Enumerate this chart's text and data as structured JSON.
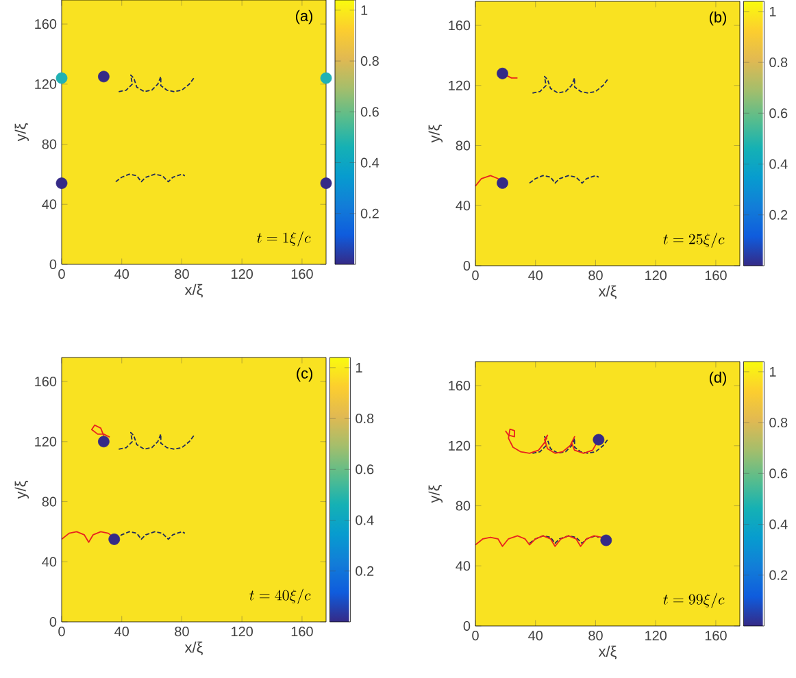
{
  "chart_data": [
    {
      "type": "line",
      "annotations": [
        "(a)",
        "t = 1\\xi/c"
      ],
      "xlabel": "x/ξ",
      "ylabel": "y/ξ",
      "xlim": [
        0,
        176
      ],
      "ylim": [
        0,
        176
      ],
      "xticks": [
        0,
        40,
        80,
        120,
        160
      ],
      "yticks": [
        0,
        40,
        80,
        120,
        160
      ],
      "clim": [
        0,
        1.04
      ],
      "cticks": [
        0.2,
        0.4,
        0.6,
        0.8,
        1
      ],
      "series": [
        {
          "type": "line",
          "color": "#1f2a5c",
          "line_style": "dashed",
          "x": [
            36,
            40,
            45,
            50,
            53,
            56,
            62,
            67,
            71,
            74,
            80,
            82
          ],
          "values": [
            55,
            58,
            60,
            59,
            55,
            58,
            60,
            59,
            55,
            58,
            60,
            59
          ]
        },
        {
          "type": "line",
          "color": "#1f2a5c",
          "line_style": "dashed",
          "x": [
            38,
            43,
            47,
            46,
            48,
            50,
            55,
            60,
            64,
            66,
            66,
            70,
            75,
            80,
            85,
            88
          ],
          "values": [
            115,
            116,
            120,
            126,
            124,
            118,
            115,
            116,
            120,
            125,
            119,
            116,
            115,
            116,
            120,
            124
          ]
        },
        {
          "type": "scatter",
          "marker": "circle",
          "x": [
            0,
            176,
            28,
            0,
            176
          ],
          "values": [
            54,
            54,
            125,
            124,
            124
          ],
          "colors": [
            "#352a87",
            "#352a87",
            "#352a87",
            "#21b1b4",
            "#21b1b4"
          ]
        }
      ]
    },
    {
      "type": "line",
      "annotations": [
        "(b)",
        "t = 25\\xi/c"
      ],
      "xlabel": "x/ξ",
      "ylabel": "y/ξ",
      "xlim": [
        0,
        176
      ],
      "ylim": [
        0,
        176
      ],
      "xticks": [
        0,
        40,
        80,
        120,
        160
      ],
      "yticks": [
        0,
        40,
        80,
        120,
        160
      ],
      "clim": [
        0,
        1.04
      ],
      "cticks": [
        0.2,
        0.4,
        0.6,
        0.8,
        1
      ],
      "series": [
        {
          "type": "line",
          "color": "#1f2a5c",
          "line_style": "dashed",
          "x": [
            36,
            40,
            45,
            50,
            53,
            56,
            62,
            67,
            71,
            74,
            80,
            82
          ],
          "values": [
            55,
            58,
            60,
            59,
            55,
            58,
            60,
            59,
            55,
            58,
            60,
            59
          ]
        },
        {
          "type": "line",
          "color": "#1f2a5c",
          "line_style": "dashed",
          "x": [
            38,
            43,
            47,
            46,
            48,
            50,
            55,
            60,
            64,
            66,
            66,
            70,
            75,
            80,
            85,
            88
          ],
          "values": [
            115,
            116,
            120,
            126,
            124,
            118,
            115,
            116,
            120,
            125,
            119,
            116,
            115,
            116,
            120,
            124
          ]
        },
        {
          "type": "scatter",
          "marker": "circle",
          "x": [
            18,
            18
          ],
          "values": [
            128,
            55
          ],
          "colors": [
            "#352a87",
            "#352a87"
          ]
        },
        {
          "type": "line",
          "color": "#e8221e",
          "line_style": "solid",
          "x": [
            0,
            4,
            10,
            15,
            18
          ],
          "values": [
            53,
            58,
            60,
            58,
            55
          ]
        },
        {
          "type": "line",
          "color": "#e8221e",
          "line_style": "solid",
          "x": [
            18,
            24,
            28
          ],
          "values": [
            128,
            125,
            125
          ]
        }
      ]
    },
    {
      "type": "line",
      "annotations": [
        "(c)",
        "t = 40\\xi/c"
      ],
      "xlabel": "x/ξ",
      "ylabel": "y/ξ",
      "xlim": [
        0,
        176
      ],
      "ylim": [
        0,
        176
      ],
      "xticks": [
        0,
        40,
        80,
        120,
        160
      ],
      "yticks": [
        0,
        40,
        80,
        120,
        160
      ],
      "clim": [
        0,
        1.04
      ],
      "cticks": [
        0.2,
        0.4,
        0.6,
        0.8,
        1
      ],
      "series": [
        {
          "type": "line",
          "color": "#1f2a5c",
          "line_style": "dashed",
          "x": [
            36,
            40,
            45,
            50,
            53,
            56,
            62,
            67,
            71,
            74,
            80,
            82
          ],
          "values": [
            55,
            58,
            60,
            59,
            55,
            58,
            60,
            59,
            55,
            58,
            60,
            59
          ]
        },
        {
          "type": "line",
          "color": "#1f2a5c",
          "line_style": "dashed",
          "x": [
            38,
            43,
            47,
            46,
            48,
            50,
            55,
            60,
            64,
            66,
            66,
            70,
            75,
            80,
            85,
            88
          ],
          "values": [
            115,
            116,
            120,
            126,
            124,
            118,
            115,
            116,
            120,
            125,
            119,
            116,
            115,
            116,
            120,
            124
          ]
        },
        {
          "type": "scatter",
          "marker": "circle",
          "x": [
            28,
            35
          ],
          "values": [
            120,
            55
          ],
          "colors": [
            "#352a87",
            "#352a87"
          ]
        },
        {
          "type": "line",
          "color": "#e8221e",
          "line_style": "solid",
          "x": [
            0,
            5,
            10,
            15,
            18,
            21,
            26,
            31,
            35
          ],
          "values": [
            55,
            59,
            60,
            58,
            53,
            58,
            60,
            59,
            56
          ]
        },
        {
          "type": "line",
          "color": "#e8221e",
          "line_style": "solid",
          "x": [
            32,
            28,
            24,
            20,
            22,
            26,
            28
          ],
          "values": [
            123,
            125,
            125,
            128,
            131,
            129,
            124
          ]
        }
      ]
    },
    {
      "type": "line",
      "annotations": [
        "(d)",
        "t = 99\\xi/c"
      ],
      "xlabel": "x/ξ",
      "ylabel": "y/ξ",
      "xlim": [
        0,
        176
      ],
      "ylim": [
        0,
        176
      ],
      "xticks": [
        0,
        40,
        80,
        120,
        160
      ],
      "yticks": [
        0,
        40,
        80,
        120,
        160
      ],
      "clim": [
        0,
        1.04
      ],
      "cticks": [
        0.2,
        0.4,
        0.6,
        0.8,
        1
      ],
      "series": [
        {
          "type": "line",
          "color": "#1f2a5c",
          "line_style": "dashed",
          "x": [
            36,
            40,
            45,
            50,
            53,
            56,
            62,
            67,
            71,
            74,
            80,
            82
          ],
          "values": [
            55,
            58,
            60,
            59,
            55,
            58,
            60,
            59,
            55,
            58,
            60,
            59
          ]
        },
        {
          "type": "line",
          "color": "#1f2a5c",
          "line_style": "dashed",
          "x": [
            38,
            43,
            47,
            46,
            48,
            50,
            55,
            60,
            64,
            66,
            66,
            70,
            75,
            80,
            85,
            88
          ],
          "values": [
            115,
            116,
            120,
            126,
            124,
            118,
            115,
            116,
            120,
            125,
            119,
            116,
            115,
            116,
            120,
            124
          ]
        },
        {
          "type": "line",
          "color": "#e8221e",
          "line_style": "solid",
          "x": [
            0,
            5,
            10,
            15,
            18,
            22,
            28,
            33,
            36,
            40,
            45,
            50,
            53,
            57,
            62,
            67,
            70,
            74,
            79,
            84,
            87
          ],
          "values": [
            54,
            58,
            59,
            58,
            53,
            58,
            60,
            58,
            54,
            58,
            60,
            58,
            53,
            58,
            60,
            58,
            53,
            58,
            60,
            59,
            57
          ]
        },
        {
          "type": "line",
          "color": "#e8221e",
          "line_style": "solid",
          "x": [
            20,
            22,
            26,
            26,
            23,
            22,
            25,
            30,
            36,
            42,
            46,
            48,
            46,
            48,
            53,
            58,
            63,
            66,
            64,
            66,
            72,
            78,
            82
          ],
          "values": [
            130,
            127,
            126,
            130,
            131,
            125,
            119,
            116,
            115,
            117,
            122,
            127,
            124,
            118,
            115,
            116,
            120,
            126,
            122,
            117,
            115,
            117,
            124
          ]
        },
        {
          "type": "scatter",
          "marker": "circle",
          "x": [
            82,
            87
          ],
          "values": [
            124,
            57
          ],
          "colors": [
            "#352a87",
            "#352a87"
          ]
        }
      ]
    }
  ]
}
